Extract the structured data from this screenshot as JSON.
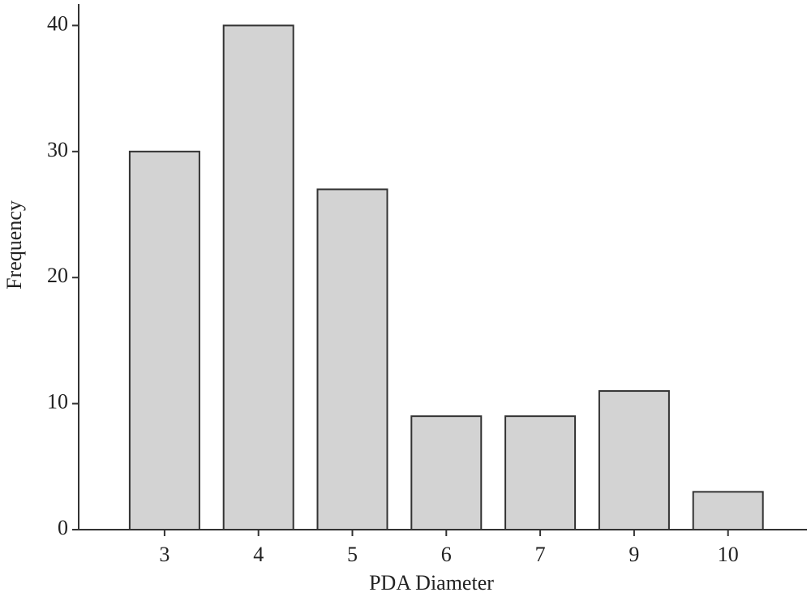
{
  "chart_data": {
    "type": "bar",
    "x_label": "PDA Diameter",
    "y_label": "Frequency",
    "categories": [
      "3",
      "4",
      "5",
      "6",
      "7",
      "9",
      "10"
    ],
    "values": [
      30,
      40,
      27,
      9,
      9,
      11,
      3
    ],
    "color": "#d3d3d3",
    "ylim": [
      0,
      41.7
    ],
    "yticks": [
      0,
      10,
      20,
      30,
      40
    ],
    "grid": false
  }
}
